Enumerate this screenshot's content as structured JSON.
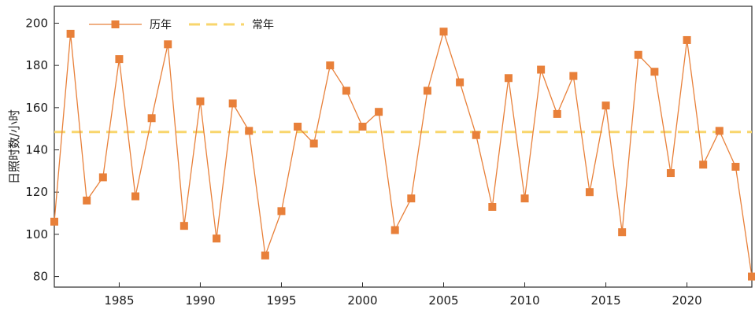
{
  "chart_data": {
    "type": "line",
    "ylabel": "日照时数/小时",
    "xlabel": "",
    "title": "",
    "xlim": [
      1981,
      2024
    ],
    "ylim": [
      75,
      208
    ],
    "xticks": [
      1985,
      1990,
      1995,
      2000,
      2005,
      2010,
      2015,
      2020
    ],
    "yticks": [
      80,
      100,
      120,
      140,
      160,
      180,
      200
    ],
    "grid": false,
    "legend_position": "top-left",
    "series": [
      {
        "name": "历年",
        "color": "#E8803A",
        "marker": "square",
        "x": [
          1981,
          1982,
          1983,
          1984,
          1985,
          1986,
          1987,
          1988,
          1989,
          1990,
          1991,
          1992,
          1993,
          1994,
          1995,
          1996,
          1997,
          1998,
          1999,
          2000,
          2001,
          2002,
          2003,
          2004,
          2005,
          2006,
          2007,
          2008,
          2009,
          2010,
          2011,
          2012,
          2013,
          2014,
          2015,
          2016,
          2017,
          2018,
          2019,
          2020,
          2021,
          2022,
          2023,
          2024
        ],
        "values": [
          106,
          195,
          116,
          127,
          183,
          118,
          155,
          190,
          104,
          163,
          98,
          162,
          149,
          90,
          111,
          151,
          143,
          180,
          168,
          151,
          158,
          102,
          117,
          168,
          196,
          172,
          147,
          113,
          174,
          117,
          178,
          157,
          175,
          120,
          161,
          101,
          185,
          177,
          129,
          192,
          133,
          149,
          132,
          80
        ]
      },
      {
        "name": "常年",
        "color": "#F8D66C",
        "style": "dashed",
        "constant": 148.5
      }
    ]
  }
}
